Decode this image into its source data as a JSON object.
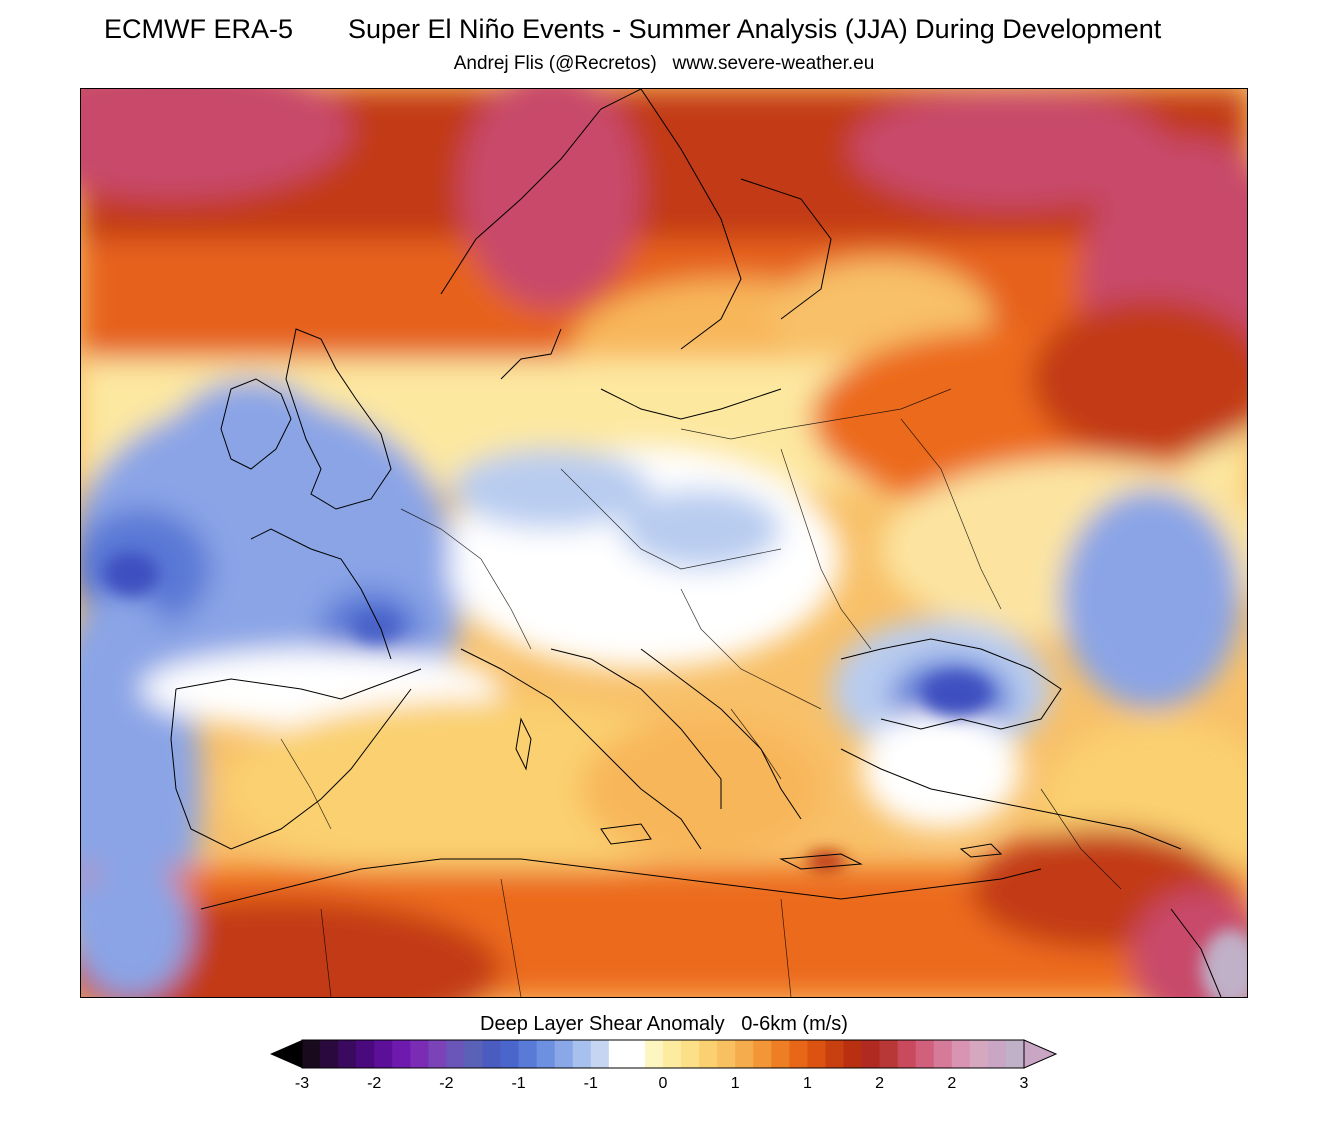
{
  "header": {
    "source": "ECMWF ERA-5",
    "title": "Super El Niño Events - Summer Analysis (JJA) During Development",
    "credit": "Andrej Flis (@Recretos)   www.severe-weather.eu"
  },
  "legend": {
    "title": "Deep Layer Shear Anomaly   0-6km (m/s)",
    "tick_labels": [
      "-3",
      "-2",
      "-2",
      "-1",
      "-1",
      "0",
      "1",
      "1",
      "2",
      "2",
      "3"
    ],
    "min": -3,
    "max": 3,
    "under_color": "#000000",
    "over_color": "#c8a6c4",
    "colors": [
      "#1a0a1e",
      "#2a0a3e",
      "#3a0a5e",
      "#4a0a7e",
      "#5c0f98",
      "#6e1aae",
      "#7a2cb4",
      "#7a44b8",
      "#6a56b8",
      "#5a62b8",
      "#4a5cc0",
      "#4a66cc",
      "#5a7ad8",
      "#6e90e0",
      "#8aa8e8",
      "#a8c0ee",
      "#c6d6f2",
      "#ffffff",
      "#ffffff",
      "#fef6c0",
      "#fdeca0",
      "#fce088",
      "#fad070",
      "#f8c060",
      "#f5ac4c",
      "#f29638",
      "#ee7e24",
      "#e86618",
      "#dc5210",
      "#c94010",
      "#b83010",
      "#b02a22",
      "#b83838",
      "#c84a5c",
      "#d0607c",
      "#d67a9a",
      "#d894b0",
      "#d6a8c0",
      "#c8a6c4",
      "#c0b0c8"
    ]
  },
  "map": {
    "region": "Europe",
    "colors": {
      "neutral": "#ffffff",
      "weak_positive": "#fdeca0",
      "moderate_positive": "#f8b65a",
      "strong_positive": "#ec6a1c",
      "very_strong_positive": "#c23a12",
      "extreme_positive": "#c8486a",
      "weak_negative": "#b8ccf0",
      "moderate_negative": "#8aa4e6",
      "strong_negative": "#5a78d6",
      "very_strong_negative": "#3e50c0"
    }
  }
}
